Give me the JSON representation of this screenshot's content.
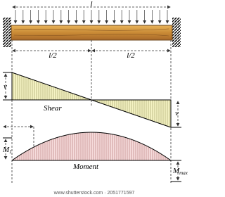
{
  "labels": {
    "span": "l",
    "half_left": "l/2",
    "half_right": "l/2",
    "shear_top": "v",
    "shear_bottom": "v",
    "shear_title": "Shear",
    "moment_left": "M",
    "moment_left_sub": "1",
    "moment_title": "Moment",
    "moment_right": "M",
    "moment_right_sub": "max"
  },
  "watermark": "www.shutterstock.com · 2051771597"
}
